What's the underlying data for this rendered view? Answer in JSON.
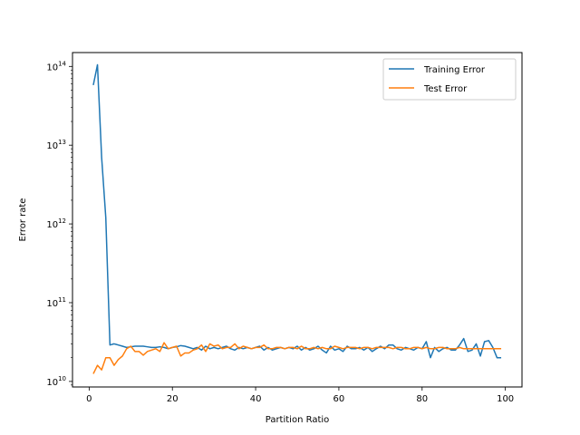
{
  "chart_data": {
    "type": "line",
    "title": "",
    "xlabel": "Partition Ratio",
    "ylabel": "Error rate",
    "xlim": [
      -4,
      104
    ],
    "ylim": [
      8500000000.0,
      150000000000000.0
    ],
    "yscale": "log",
    "grid": false,
    "legend_position": "top-right",
    "x_ticks": [
      0,
      20,
      40,
      60,
      80,
      100
    ],
    "y_ticks": [
      10000000000.0,
      100000000000.0,
      1000000000000.0,
      10000000000000.0,
      100000000000000.0
    ],
    "y_tick_labels": [
      {
        "base": "10",
        "exp": "10"
      },
      {
        "base": "10",
        "exp": "11"
      },
      {
        "base": "10",
        "exp": "12"
      },
      {
        "base": "10",
        "exp": "13"
      },
      {
        "base": "10",
        "exp": "14"
      }
    ],
    "x": [
      1,
      2,
      3,
      4,
      5,
      6,
      7,
      8,
      9,
      10,
      11,
      12,
      13,
      14,
      15,
      16,
      17,
      18,
      19,
      20,
      21,
      22,
      23,
      24,
      25,
      26,
      27,
      28,
      29,
      30,
      31,
      32,
      33,
      34,
      35,
      36,
      37,
      38,
      39,
      40,
      41,
      42,
      43,
      44,
      45,
      46,
      47,
      48,
      49,
      50,
      51,
      52,
      53,
      54,
      55,
      56,
      57,
      58,
      59,
      60,
      61,
      62,
      63,
      64,
      65,
      66,
      67,
      68,
      69,
      70,
      71,
      72,
      73,
      74,
      75,
      76,
      77,
      78,
      79,
      80,
      81,
      82,
      83,
      84,
      85,
      86,
      87,
      88,
      89,
      90,
      91,
      92,
      93,
      94,
      95,
      96,
      97,
      98,
      99
    ],
    "series": [
      {
        "name": "Training Error",
        "color": "#1f77b4",
        "values": [
          58000000000000.0,
          105000000000000.0,
          7000000000000.0,
          1200000000000.0,
          29000000000.0,
          30000000000.0,
          29000000000.0,
          28000000000.0,
          27000000000.0,
          27500000000.0,
          28000000000.0,
          28000000000.0,
          28000000000.0,
          27500000000.0,
          27000000000.0,
          27000000000.0,
          27500000000.0,
          27000000000.0,
          26000000000.0,
          27000000000.0,
          27500000000.0,
          28500000000.0,
          28000000000.0,
          27000000000.0,
          26000000000.0,
          27000000000.0,
          25000000000.0,
          28000000000.0,
          26000000000.0,
          27000000000.0,
          26000000000.0,
          27000000000.0,
          28000000000.0,
          26000000000.0,
          25000000000.0,
          27000000000.0,
          26000000000.0,
          27000000000.0,
          26000000000.0,
          27000000000.0,
          28000000000.0,
          25000000000.0,
          27000000000.0,
          25000000000.0,
          26000000000.0,
          27000000000.0,
          26000000000.0,
          27000000000.0,
          26000000000.0,
          28000000000.0,
          25000000000.0,
          27000000000.0,
          25000000000.0,
          26000000000.0,
          28000000000.0,
          25000000000.0,
          23000000000.0,
          28000000000.0,
          25000000000.0,
          26000000000.0,
          24000000000.0,
          28000000000.0,
          26000000000.0,
          26000000000.0,
          27000000000.0,
          25000000000.0,
          27000000000.0,
          24000000000.0,
          26000000000.0,
          28000000000.0,
          26000000000.0,
          29000000000.0,
          29000000000.0,
          26000000000.0,
          25000000000.0,
          27000000000.0,
          26000000000.0,
          25000000000.0,
          27000000000.0,
          26000000000.0,
          32000000000.0,
          20000000000.0,
          27000000000.0,
          24000000000.0,
          26000000000.0,
          27000000000.0,
          25000000000.0,
          25000000000.0,
          29000000000.0,
          35000000000.0,
          24000000000.0,
          25000000000.0,
          30000000000.0,
          21000000000.0,
          32000000000.0,
          33000000000.0,
          27000000000.0,
          20000000000.0,
          20000000000.0
        ]
      },
      {
        "name": "Test Error",
        "color": "#ff7f0e",
        "values": [
          12500000000.0,
          16000000000.0,
          14000000000.0,
          20000000000.0,
          20000000000.0,
          16000000000.0,
          19000000000.0,
          21000000000.0,
          26000000000.0,
          28000000000.0,
          24000000000.0,
          24000000000.0,
          21500000000.0,
          24000000000.0,
          25000000000.0,
          26000000000.0,
          24000000000.0,
          31000000000.0,
          26000000000.0,
          27000000000.0,
          28000000000.0,
          21000000000.0,
          23000000000.0,
          23000000000.0,
          25000000000.0,
          26000000000.0,
          29000000000.0,
          24000000000.0,
          30000000000.0,
          28000000000.0,
          29000000000.0,
          26000000000.0,
          27000000000.0,
          27000000000.0,
          30000000000.0,
          26000000000.0,
          28000000000.0,
          27000000000.0,
          26000000000.0,
          27000000000.0,
          27000000000.0,
          29000000000.0,
          26000000000.0,
          26000000000.0,
          27000000000.0,
          27000000000.0,
          26000000000.0,
          27000000000.0,
          27000000000.0,
          26000000000.0,
          28000000000.0,
          26000000000.0,
          26000000000.0,
          27000000000.0,
          26000000000.0,
          27000000000.0,
          26000000000.0,
          26000000000.0,
          28000000000.0,
          27000000000.0,
          26000000000.0,
          27000000000.0,
          27000000000.0,
          27000000000.0,
          26000000000.0,
          27000000000.0,
          27000000000.0,
          26000000000.0,
          27000000000.0,
          27000000000.0,
          27000000000.0,
          27000000000.0,
          26000000000.0,
          27000000000.0,
          27000000000.0,
          26000000000.0,
          26000000000.0,
          27000000000.0,
          27000000000.0,
          26000000000.0,
          27000000000.0,
          26000000000.0,
          26000000000.0,
          27000000000.0,
          27000000000.0,
          26000000000.0,
          26000000000.0,
          26000000000.0,
          27000000000.0,
          26000000000.0,
          26000000000.0,
          26000000000.0,
          26000000000.0,
          26000000000.0,
          26000000000.0,
          26000000000.0,
          26000000000.0,
          26000000000.0,
          26000000000.0
        ]
      }
    ]
  }
}
